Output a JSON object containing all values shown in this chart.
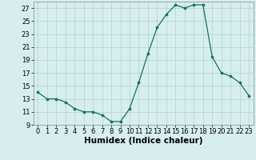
{
  "x": [
    0,
    1,
    2,
    3,
    4,
    5,
    6,
    7,
    8,
    9,
    10,
    11,
    12,
    13,
    14,
    15,
    16,
    17,
    18,
    19,
    20,
    21,
    22,
    23
  ],
  "y": [
    14,
    13,
    13,
    12.5,
    11.5,
    11,
    11,
    10.5,
    9.5,
    9.5,
    11.5,
    15.5,
    20,
    24,
    26,
    27.5,
    27,
    27.5,
    27.5,
    19.5,
    17,
    16.5,
    15.5,
    13.5
  ],
  "line_color": "#1a6e60",
  "marker": "o",
  "marker_size": 2.2,
  "bg_color": "#d6eeee",
  "grid_color": "#b0d0d0",
  "xlabel": "Humidex (Indice chaleur)",
  "xlim": [
    -0.5,
    23.5
  ],
  "ylim": [
    9,
    28
  ],
  "yticks": [
    9,
    11,
    13,
    15,
    17,
    19,
    21,
    23,
    25,
    27
  ],
  "xticks": [
    0,
    1,
    2,
    3,
    4,
    5,
    6,
    7,
    8,
    9,
    10,
    11,
    12,
    13,
    14,
    15,
    16,
    17,
    18,
    19,
    20,
    21,
    22,
    23
  ],
  "xlabel_fontsize": 7.5,
  "tick_fontsize": 6.0
}
